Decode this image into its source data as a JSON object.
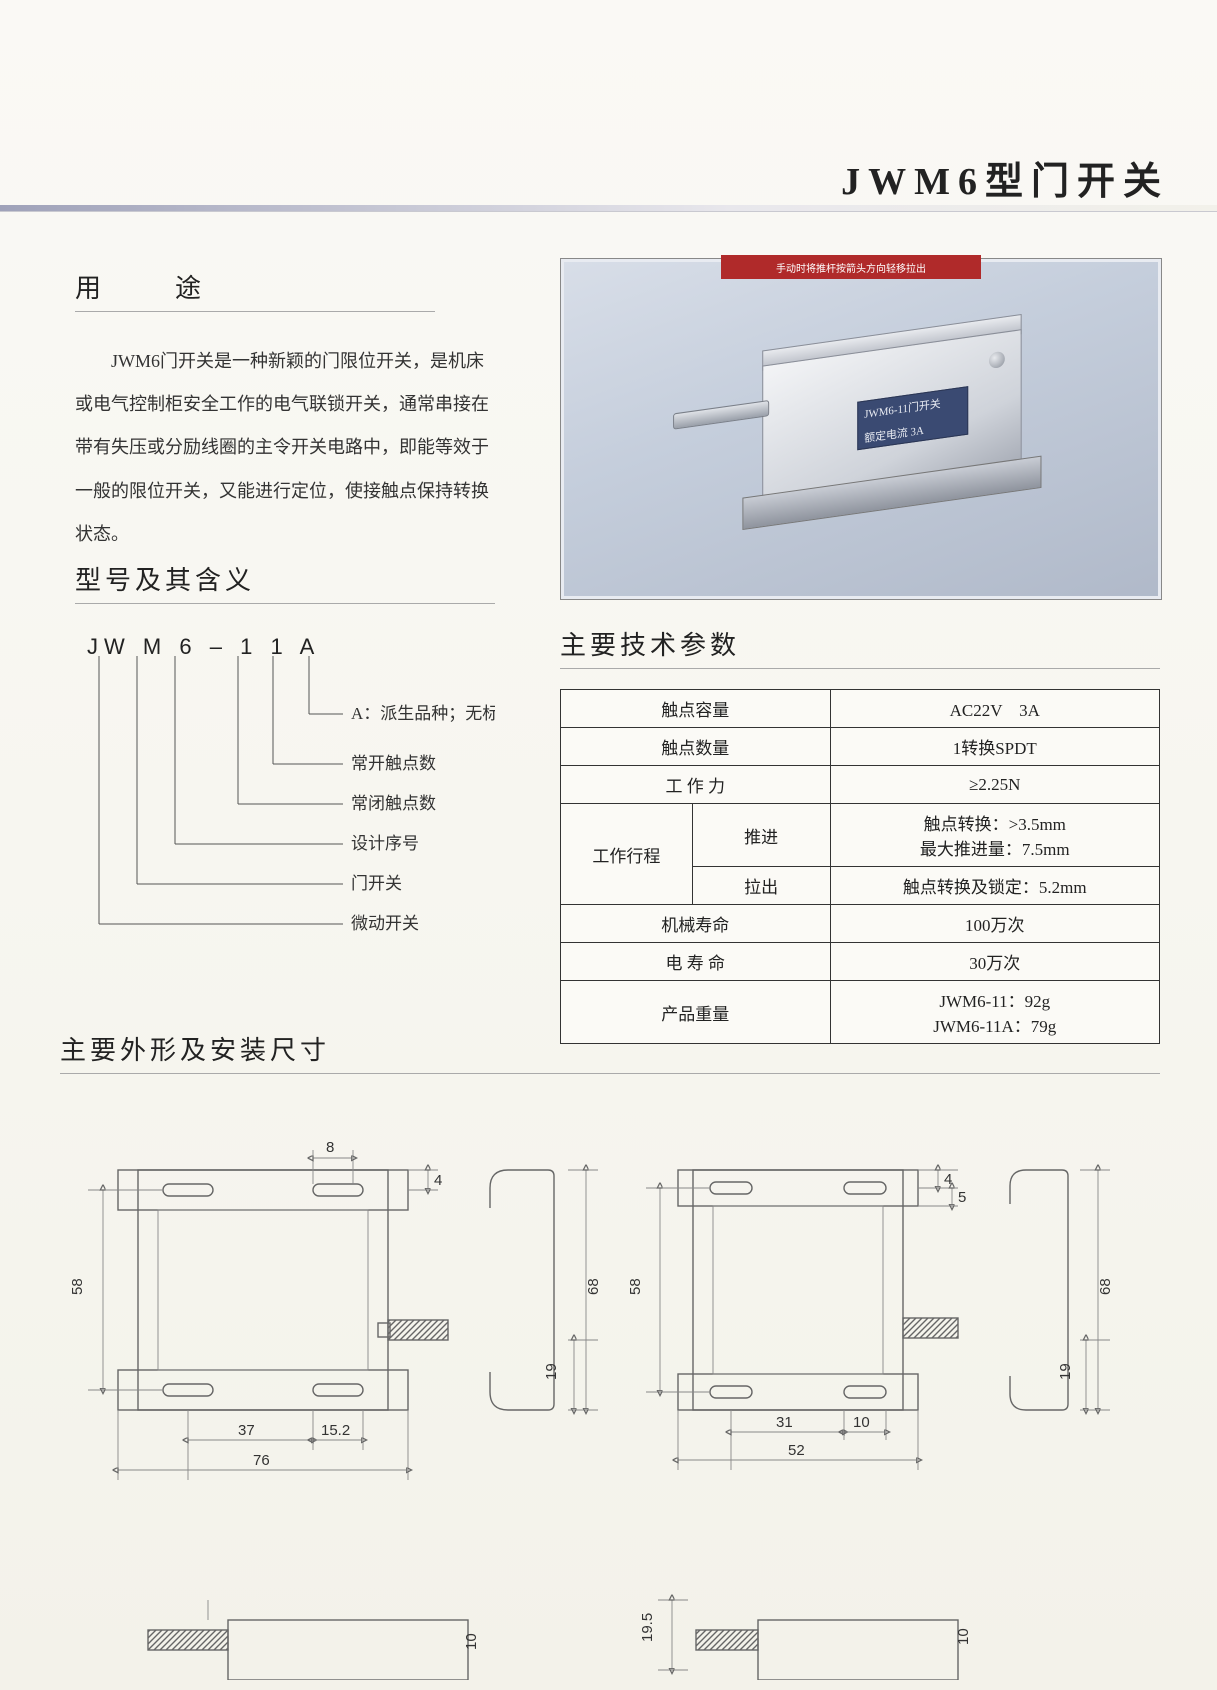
{
  "title": "JWM6型门开关",
  "usage": {
    "heading": "用　途",
    "text": "JWM6门开关是一种新颖的门限位开关，是机床或电气控制柜安全工作的电气联锁开关，通常串接在带有失压或分励线圈的主令开关电路中，即能等效于一般的限位开关，又能进行定位，使接触点保持转换状态。"
  },
  "photo": {
    "red_label": "手动时将推杆按箭头方向轻移拉出",
    "blue_line1": "JWM6-11门开关",
    "blue_line2": "额定电流 3A"
  },
  "model": {
    "heading": "型号及其含义",
    "code_parts": [
      "JW",
      "M",
      "6",
      "–",
      "1",
      "1",
      "A"
    ],
    "lines": [
      "A：派生品种；无标志：标准型",
      "常开触点数",
      "常闭触点数",
      "设计序号",
      "门开关",
      "微动开关"
    ]
  },
  "specs": {
    "heading": "主要技术参数",
    "rows": [
      {
        "k": "触点容量",
        "v": "AC22V　3A"
      },
      {
        "k": "触点数量",
        "v": "1转换SPDT"
      },
      {
        "k": "工 作 力",
        "v": "≥2.25N"
      }
    ],
    "stroke_label": "工作行程",
    "stroke_rows": [
      {
        "k": "推进",
        "v": "触点转换：>3.5mm<br>最大推进量：7.5mm"
      },
      {
        "k": "拉出",
        "v": "触点转换及锁定：5.2mm"
      }
    ],
    "rows2": [
      {
        "k": "机械寿命",
        "v": "100万次"
      },
      {
        "k": "电 寿 命",
        "v": "30万次"
      },
      {
        "k": "产品重量",
        "v": "JWM6-11：92g<br>JWM6-11A：79g"
      }
    ]
  },
  "dims": {
    "heading": "主要外形及安装尺寸",
    "left": {
      "w": "76",
      "slot_gap": "37",
      "slot_w": "15.2",
      "slot_len": "8",
      "top_off": "4",
      "h_mount": "58",
      "h_total": "68",
      "h_bot": "19"
    },
    "right": {
      "w": "52",
      "slot_gap": "31",
      "slot_w": "10",
      "top1": "4",
      "top2": "5",
      "h_mount": "58",
      "h_total": "68",
      "h_bot": "19",
      "extra": "19.5",
      "extra2": "10"
    }
  },
  "colors": {
    "bg": "#f8f7f3",
    "line": "#666",
    "text": "#333",
    "accent": "#3a4a72",
    "red": "#b02a2a"
  }
}
